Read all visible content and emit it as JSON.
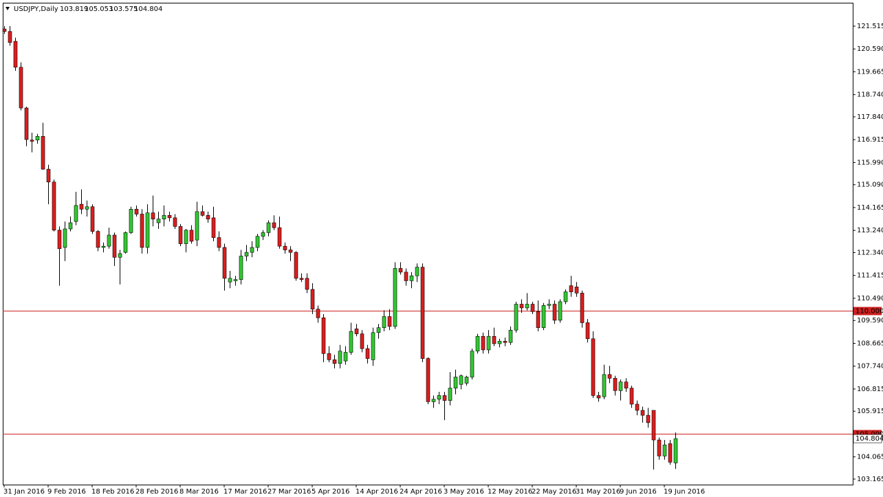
{
  "chart_data": {
    "type": "candlestick",
    "symbol": "USDJPY,Daily",
    "categories": [
      "31 Jan 2016",
      null,
      null,
      null,
      null,
      null,
      null,
      null,
      "9 Feb 2016",
      null,
      null,
      null,
      null,
      null,
      null,
      null,
      "18 Feb 2016",
      null,
      null,
      null,
      null,
      null,
      null,
      null,
      "28 Feb 2016",
      null,
      null,
      null,
      null,
      null,
      null,
      null,
      "8 Mar 2016",
      null,
      null,
      null,
      null,
      null,
      null,
      null,
      "17 Mar 2016",
      null,
      null,
      null,
      null,
      null,
      null,
      null,
      "27 Mar 2016",
      null,
      null,
      null,
      null,
      null,
      null,
      null,
      "5 Apr 2016",
      null,
      null,
      null,
      null,
      null,
      null,
      null,
      "14 Apr 2016",
      null,
      null,
      null,
      null,
      null,
      null,
      null,
      "24 Apr 2016",
      null,
      null,
      null,
      null,
      null,
      null,
      null,
      "3 May 2016",
      null,
      null,
      null,
      null,
      null,
      null,
      null,
      "12 May 2016",
      null,
      null,
      null,
      null,
      null,
      null,
      null,
      "22 May 2016",
      null,
      null,
      null,
      null,
      null,
      null,
      null,
      "31 May 2016",
      null,
      null,
      null,
      null,
      null,
      null,
      null,
      "9 Jun 2016",
      null,
      null,
      null,
      null,
      null,
      null,
      null,
      "19 Jun 2016",
      null,
      null
    ],
    "open": [
      121.4,
      121.3,
      120.9,
      119.85,
      118.2,
      116.9,
      116.9,
      117.05,
      115.72,
      115.2,
      113.25,
      112.55,
      113.3,
      113.6,
      114.3,
      114.1,
      114.2,
      113.2,
      112.55,
      112.6,
      113.05,
      112.15,
      112.35,
      113.15,
      114.1,
      113.9,
      112.55,
      113.95,
      113.55,
      113.7,
      113.85,
      113.75,
      113.4,
      112.7,
      113.25,
      112.85,
      114.0,
      113.85,
      113.75,
      112.95,
      112.55,
      111.15,
      111.2,
      111.25,
      112.2,
      112.35,
      112.55,
      113.0,
      113.15,
      113.55,
      113.35,
      112.6,
      112.45,
      112.35,
      111.3,
      111.3,
      110.85,
      110.05,
      109.7,
      108.25,
      108.0,
      107.85,
      107.95,
      108.3,
      109.25,
      109.05,
      108.45,
      108.0,
      109.1,
      109.3,
      109.75,
      109.35,
      111.7,
      111.55,
      111.2,
      111.4,
      111.75,
      108.05,
      106.3,
      106.4,
      106.55,
      106.35,
      106.85,
      107.0,
      107.05,
      107.3,
      108.35,
      108.95,
      108.4,
      108.95,
      108.65,
      108.75,
      108.7,
      109.2,
      110.25,
      110.1,
      110.25,
      109.95,
      109.3,
      110.2,
      110.25,
      109.6,
      110.35,
      111.0,
      110.95,
      110.7,
      109.5,
      108.85,
      106.55,
      106.5,
      107.4,
      107.25,
      106.75,
      107.1,
      106.85,
      106.2,
      105.95,
      105.75,
      105.95,
      104.75,
      104.1,
      104.6,
      103.819
    ],
    "high": [
      121.52,
      121.52,
      121.05,
      120.05,
      118.25,
      117.2,
      117.15,
      117.6,
      115.9,
      115.3,
      113.4,
      113.6,
      113.8,
      114.8,
      114.9,
      114.45,
      114.3,
      113.25,
      112.75,
      113.35,
      113.15,
      112.45,
      113.2,
      114.2,
      114.25,
      114.1,
      114.3,
      114.65,
      114.0,
      114.25,
      114.0,
      113.9,
      113.5,
      113.3,
      113.45,
      114.4,
      114.25,
      114.0,
      114.2,
      113.2,
      112.7,
      111.6,
      111.4,
      112.45,
      112.65,
      112.8,
      113.1,
      113.25,
      113.65,
      113.85,
      113.8,
      112.75,
      112.6,
      112.4,
      111.5,
      111.5,
      111.1,
      110.2,
      109.85,
      108.55,
      108.2,
      108.6,
      108.55,
      109.5,
      109.45,
      109.2,
      108.6,
      109.3,
      109.45,
      110.0,
      110.05,
      111.95,
      111.95,
      111.7,
      111.55,
      111.9,
      111.9,
      108.1,
      106.55,
      106.7,
      106.7,
      107.5,
      107.6,
      107.4,
      107.35,
      108.45,
      109.05,
      109.1,
      109.2,
      109.3,
      108.85,
      108.9,
      109.35,
      110.35,
      110.45,
      110.7,
      110.35,
      110.4,
      110.3,
      110.45,
      110.4,
      110.45,
      110.85,
      111.4,
      111.15,
      110.8,
      109.65,
      109.15,
      106.7,
      107.8,
      107.75,
      107.35,
      107.2,
      107.25,
      106.95,
      106.35,
      106.1,
      106.05,
      105.95,
      104.85,
      104.75,
      104.75,
      105.053
    ],
    "low": [
      121.2,
      120.72,
      119.7,
      118.1,
      116.65,
      116.4,
      116.75,
      115.7,
      114.3,
      113.2,
      111.0,
      112.0,
      113.2,
      113.45,
      113.9,
      113.8,
      113.1,
      112.4,
      112.35,
      112.5,
      111.8,
      111.05,
      112.3,
      113.1,
      113.8,
      112.3,
      112.3,
      113.4,
      113.3,
      113.4,
      113.6,
      113.3,
      112.6,
      112.35,
      112.7,
      112.6,
      113.8,
      113.55,
      112.8,
      112.4,
      110.8,
      110.9,
      111.0,
      111.05,
      112.0,
      112.15,
      112.4,
      112.85,
      113.0,
      113.25,
      112.5,
      112.3,
      112.0,
      111.2,
      111.15,
      110.7,
      109.85,
      109.5,
      107.9,
      107.9,
      107.65,
      107.65,
      107.8,
      108.2,
      108.95,
      108.3,
      107.85,
      107.75,
      108.85,
      109.15,
      109.2,
      109.25,
      111.45,
      111.0,
      110.9,
      111.15,
      107.9,
      106.2,
      106.05,
      106.2,
      105.55,
      106.15,
      106.6,
      106.8,
      106.95,
      107.2,
      108.25,
      108.25,
      108.25,
      108.55,
      108.5,
      108.55,
      108.6,
      109.1,
      109.9,
      110.0,
      109.85,
      109.15,
      109.2,
      110.05,
      109.45,
      109.5,
      110.25,
      110.55,
      110.55,
      109.3,
      108.7,
      106.45,
      106.3,
      106.4,
      107.05,
      106.55,
      106.35,
      106.7,
      106.05,
      105.75,
      105.45,
      105.25,
      103.55,
      103.95,
      103.95,
      103.75,
      103.575
    ],
    "close": [
      121.3,
      120.85,
      119.85,
      118.2,
      116.92,
      116.85,
      117.05,
      115.72,
      115.2,
      113.25,
      112.5,
      113.3,
      113.55,
      114.25,
      114.1,
      114.2,
      113.2,
      112.55,
      112.6,
      113.05,
      112.15,
      112.3,
      113.15,
      114.1,
      113.9,
      112.55,
      113.95,
      113.7,
      113.7,
      113.85,
      113.75,
      113.4,
      112.7,
      113.25,
      112.8,
      114.0,
      113.85,
      113.7,
      112.95,
      112.55,
      111.3,
      111.3,
      111.25,
      112.2,
      112.35,
      112.55,
      113.0,
      113.15,
      113.55,
      113.35,
      112.6,
      112.45,
      112.35,
      111.3,
      111.25,
      110.85,
      110.05,
      109.7,
      108.25,
      108.0,
      107.85,
      108.35,
      108.3,
      109.15,
      109.05,
      108.45,
      108.05,
      109.1,
      109.3,
      109.75,
      109.35,
      111.7,
      111.55,
      111.2,
      111.4,
      111.75,
      108.05,
      106.3,
      106.4,
      106.55,
      106.35,
      106.85,
      107.3,
      107.35,
      107.3,
      108.35,
      108.95,
      108.4,
      108.95,
      108.65,
      108.75,
      108.7,
      109.2,
      110.25,
      110.1,
      110.25,
      109.95,
      109.3,
      110.2,
      110.25,
      109.6,
      110.35,
      110.75,
      110.75,
      110.7,
      109.5,
      108.85,
      106.55,
      106.45,
      107.4,
      107.25,
      106.75,
      107.1,
      106.85,
      106.2,
      105.95,
      105.75,
      105.45,
      104.75,
      104.1,
      104.55,
      103.85,
      104.804
    ],
    "ylim": [
      102.941,
      122.462
    ],
    "yticks": [
      103.165,
      104.065,
      105.915,
      106.815,
      {
        "value": 107.74,
        "label": "107.740"
      },
      108.665,
      {
        "value": 109.59,
        "label": "109.590"
      },
      {
        "value": 110.49,
        "label": "110.490"
      },
      111.415,
      {
        "value": 112.34,
        "label": "112.340"
      },
      {
        "value": 113.24,
        "label": "113.240"
      },
      114.165,
      {
        "value": 115.09,
        "label": "115.090"
      },
      {
        "value": 115.99,
        "label": "115.990"
      },
      116.915,
      {
        "value": 117.84,
        "label": "117.840"
      },
      {
        "value": 118.74,
        "label": "118.740"
      },
      119.665,
      {
        "value": 120.59,
        "label": "120.590"
      },
      121.515
    ],
    "hlines": [
      {
        "value": 110,
        "label": "110.000"
      },
      {
        "value": 105,
        "label": "105.000"
      }
    ],
    "colors": {
      "up": "#32c832",
      "down": "#dc1e1e",
      "hline": "#cc2020",
      "outline": "#000000"
    }
  }
}
